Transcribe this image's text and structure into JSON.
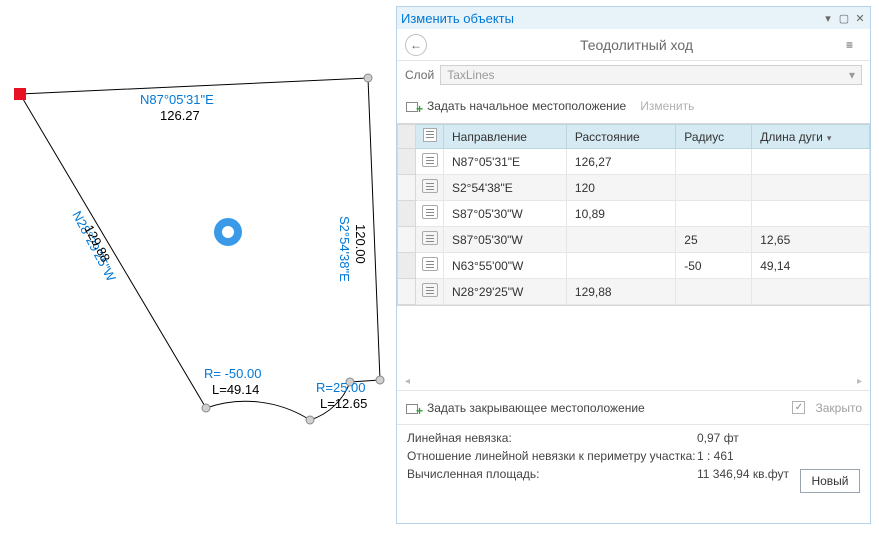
{
  "panel": {
    "title": "Изменить объекты",
    "page_title": "Теодолитный ход",
    "layer_label": "Слой",
    "layer_value": "TaxLines",
    "action_start": "Задать начальное местоположение",
    "action_edit": "Изменить",
    "closing_action": "Задать закрывающее местоположение",
    "closed_label": "Закрыто",
    "new_button": "Новый"
  },
  "grid": {
    "columns": {
      "direction": "Направление",
      "distance": "Расстояние",
      "radius": "Радиус",
      "arc_length": "Длина дуги"
    },
    "rows": [
      {
        "direction": "N87°05'31\"E",
        "distance": "126,27",
        "radius": "",
        "arc": ""
      },
      {
        "direction": "S2°54'38\"E",
        "distance": "120",
        "radius": "",
        "arc": ""
      },
      {
        "direction": "S87°05'30\"W",
        "distance": "10,89",
        "radius": "",
        "arc": ""
      },
      {
        "direction": "S87°05'30\"W",
        "distance": "",
        "radius": "25",
        "arc": "12,65"
      },
      {
        "direction": "N63°55'00\"W",
        "distance": "",
        "radius": "-50",
        "arc": "49,14"
      },
      {
        "direction": "N28°29'25\"W",
        "distance": "129,88",
        "radius": "",
        "arc": ""
      }
    ]
  },
  "stats": {
    "linear_misclosure_label": "Линейная невязка:",
    "linear_misclosure_value": "0,97 фт",
    "ratio_label": "Отношение линейной невязки к периметру участка:",
    "ratio_value": "1 : 461",
    "area_label": "Вычисленная площадь:",
    "area_value": "11 346,94 кв.фут"
  },
  "diagram": {
    "segments": {
      "top": {
        "dir": "N87°05'31\"E",
        "len": "126.27"
      },
      "right": {
        "dir": "S2°54'38\"E",
        "len": "120.00"
      },
      "arc1": {
        "r": "R=25.00",
        "l": "L=12.65"
      },
      "arc2": {
        "r": "R= -50.00",
        "l": "L=49.14"
      },
      "left": {
        "dir": "N28°29'25\"W",
        "len": "129.88"
      }
    },
    "colors": {
      "direction": "#0078d7",
      "edge": "#000000",
      "vertex_fill": "#d0d0d0",
      "start_marker": "#e81123",
      "center_ring": "#3a9ae8",
      "panel_border": "#b7d3eb",
      "panel_title_bg": "#e7f2f9",
      "header_bg": "#d5eaf2"
    }
  }
}
